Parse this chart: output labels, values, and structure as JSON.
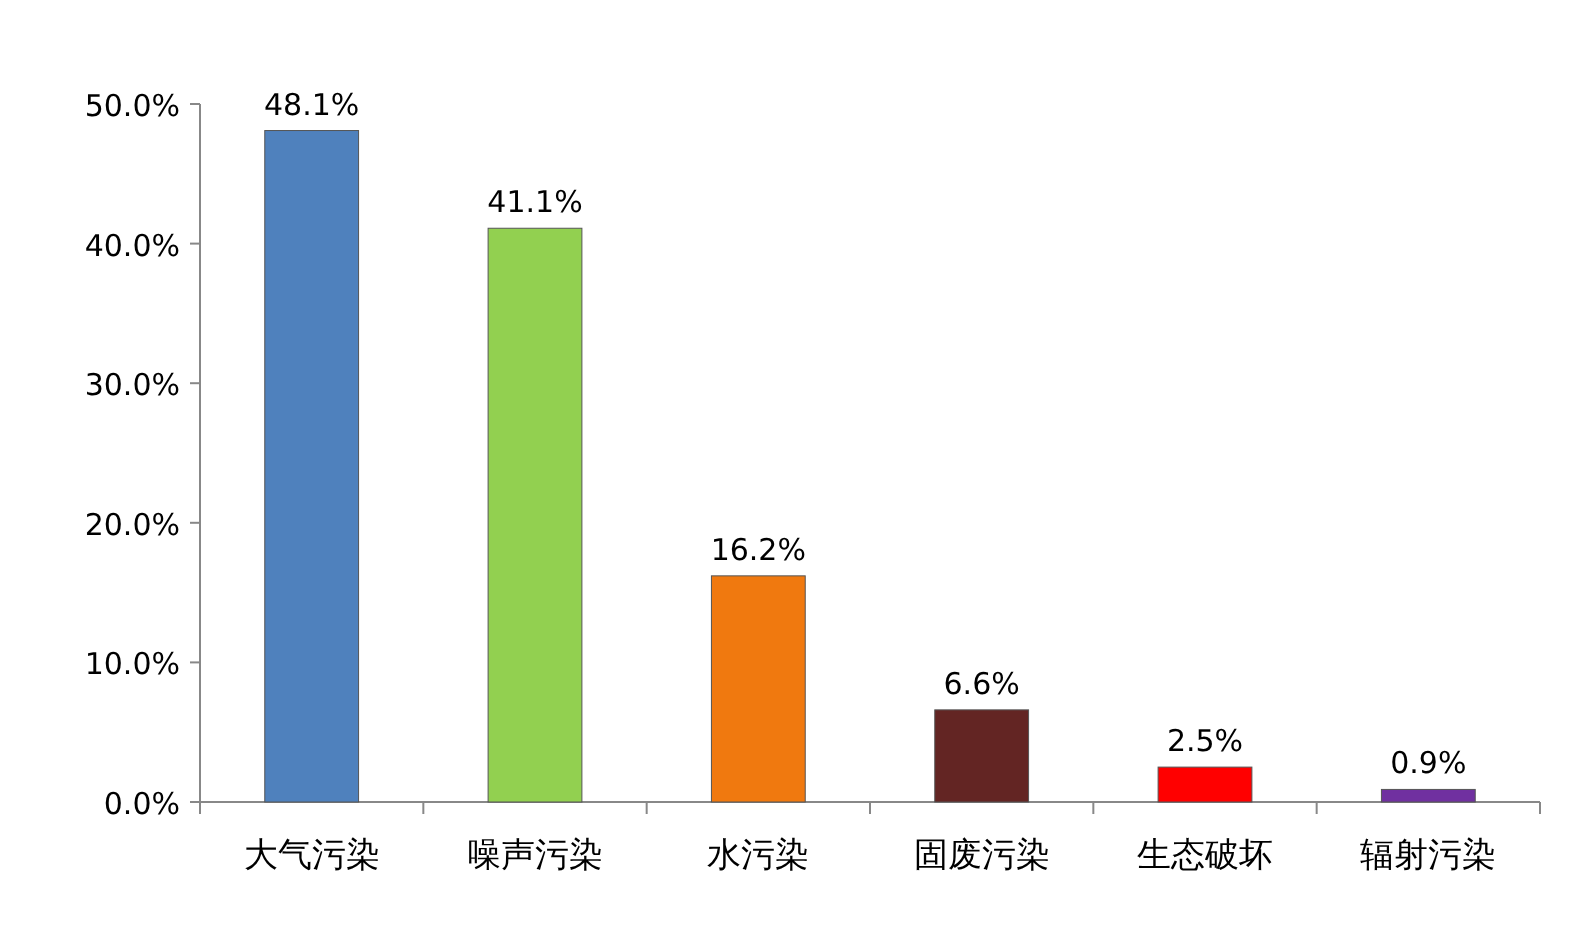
{
  "chart_data": {
    "type": "bar",
    "categories": [
      "大气污染",
      "噪声污染",
      "水污染",
      "固废污染",
      "生态破坏",
      "辐射污染"
    ],
    "values": [
      48.1,
      41.1,
      16.2,
      6.6,
      2.5,
      0.9
    ],
    "colors": [
      "#4f81bd",
      "#92d050",
      "#f0790f",
      "#632523",
      "#ff0000",
      "#7030a0"
    ],
    "value_labels": [
      "48.1%",
      "41.1%",
      "16.2%",
      "6.6%",
      "2.5%",
      "0.9%"
    ],
    "ylim": [
      0,
      50
    ],
    "yticks": [
      {
        "value": 0,
        "label": "0.0%"
      },
      {
        "value": 10,
        "label": "10.0%"
      },
      {
        "value": 20,
        "label": "20.0%"
      },
      {
        "value": 30,
        "label": "30.0%"
      },
      {
        "value": 40,
        "label": "40.0%"
      },
      {
        "value": 50,
        "label": "50.0%"
      }
    ],
    "grid": false
  }
}
